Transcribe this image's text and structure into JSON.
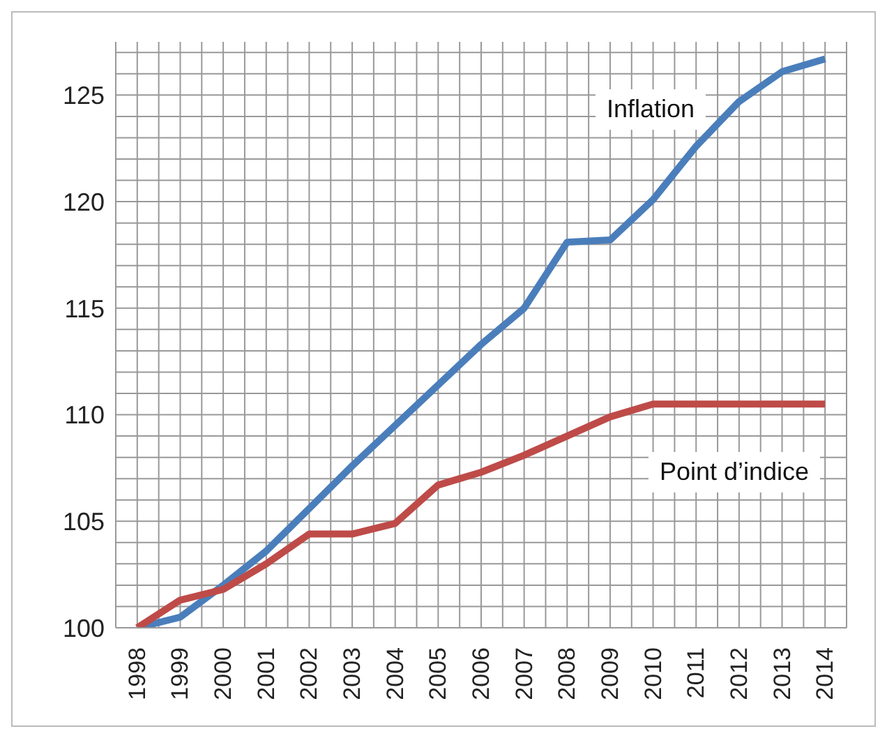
{
  "chart_data": {
    "type": "line",
    "x": [
      1998,
      1999,
      2000,
      2001,
      2002,
      2003,
      2004,
      2005,
      2006,
      2007,
      2008,
      2009,
      2010,
      2011,
      2012,
      2013,
      2014
    ],
    "series": [
      {
        "name": "Inflation",
        "color": "#4a7ebb",
        "values": [
          100,
          100.5,
          102,
          103.6,
          105.6,
          107.6,
          109.5,
          111.4,
          113.3,
          115,
          118.1,
          118.2,
          120.1,
          122.6,
          124.7,
          126.1,
          126.7
        ]
      },
      {
        "name": "Point d’indice",
        "color": "#be4b48",
        "values": [
          100,
          101.3,
          101.8,
          103,
          104.4,
          104.4,
          104.9,
          106.7,
          107.3,
          108.1,
          109,
          109.9,
          110.5,
          110.5,
          110.5,
          110.5,
          110.5
        ]
      }
    ],
    "xlim": [
      1997.5,
      2014.5
    ],
    "xticks": [
      {
        "value": 1997.5,
        "label": null
      },
      1998,
      {
        "value": 1998.5,
        "label": null
      },
      1999,
      {
        "value": 1999.5,
        "label": null
      },
      2000,
      {
        "value": 2000.5,
        "label": null
      },
      2001,
      {
        "value": 2001.5,
        "label": null
      },
      2002,
      {
        "value": 2002.5,
        "label": null
      },
      2003,
      {
        "value": 2003.5,
        "label": null
      },
      2004,
      {
        "value": 2004.5,
        "label": null
      },
      2005,
      {
        "value": 2005.5,
        "label": null
      },
      2006,
      {
        "value": 2006.5,
        "label": null
      },
      2007,
      {
        "value": 2007.5,
        "label": null
      },
      2008,
      {
        "value": 2008.5,
        "label": null
      },
      2009,
      {
        "value": 2009.5,
        "label": null
      },
      2010,
      {
        "value": 2010.5,
        "label": null
      },
      2011,
      {
        "value": 2011.5,
        "label": null
      },
      2012,
      {
        "value": 2012.5,
        "label": null
      },
      2013,
      {
        "value": 2013.5,
        "label": null
      },
      2014,
      {
        "value": 2014.5,
        "label": null
      }
    ],
    "ylim": [
      100,
      127.5
    ],
    "yticks": [
      100,
      {
        "value": 101,
        "label": null
      },
      {
        "value": 102,
        "label": null
      },
      {
        "value": 103,
        "label": null
      },
      {
        "value": 104,
        "label": null
      },
      105,
      {
        "value": 106,
        "label": null
      },
      {
        "value": 107,
        "label": null
      },
      {
        "value": 108,
        "label": null
      },
      {
        "value": 109,
        "label": null
      },
      110,
      {
        "value": 111,
        "label": null
      },
      {
        "value": 112,
        "label": null
      },
      {
        "value": 113,
        "label": null
      },
      {
        "value": 114,
        "label": null
      },
      115,
      {
        "value": 116,
        "label": null
      },
      {
        "value": 117,
        "label": null
      },
      {
        "value": 118,
        "label": null
      },
      {
        "value": 119,
        "label": null
      },
      120,
      {
        "value": 121,
        "label": null
      },
      {
        "value": 122,
        "label": null
      },
      {
        "value": 123,
        "label": null
      },
      {
        "value": 124,
        "label": null
      },
      125,
      {
        "value": 126,
        "label": null
      },
      {
        "value": 127,
        "label": null
      }
    ],
    "grid": true,
    "legend": false,
    "marker": "none",
    "line_style": "solid"
  }
}
